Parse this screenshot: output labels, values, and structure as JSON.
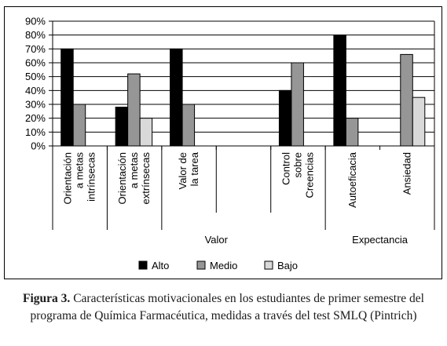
{
  "chart_data": {
    "type": "bar",
    "ylim": [
      0,
      90
    ],
    "y_ticks": [
      "0%",
      "10%",
      "20%",
      "30%",
      "40%",
      "50%",
      "60%",
      "70%",
      "80%",
      "90%"
    ],
    "grid": true,
    "legend_position": "bottom",
    "categories": [
      [
        "Orientación",
        "a metas",
        "intrínsecas"
      ],
      [
        "Orientación",
        "a metas",
        "extrínsecas"
      ],
      [
        "Valor de",
        "la tarea"
      ],
      [],
      [
        "Control",
        "sobre",
        "Creencias"
      ],
      [
        "Autoeficacia"
      ],
      [
        "Ansiedad"
      ]
    ],
    "groups": [
      {
        "label": "",
        "span": [
          0,
          0
        ]
      },
      {
        "label": "Valor",
        "span": [
          1,
          4
        ]
      },
      {
        "label": "Expectancia",
        "span": [
          5,
          6
        ]
      }
    ],
    "series": [
      {
        "name": "Alto",
        "color": "#000000",
        "values": [
          70,
          28,
          70,
          null,
          40,
          80,
          null
        ]
      },
      {
        "name": "Medio",
        "color": "#969696",
        "values": [
          30,
          52,
          30,
          null,
          60,
          20,
          66
        ]
      },
      {
        "name": "Bajo",
        "color": "#d9d9d9",
        "values": [
          null,
          20,
          null,
          null,
          null,
          null,
          35
        ]
      }
    ]
  },
  "caption": {
    "lead": "Figura 3.",
    "text": " Características motivacionales en los estudiantes de primer semestre del programa de Química Farmacéutica, medidas a través del test SMLQ (Pintrich)"
  }
}
